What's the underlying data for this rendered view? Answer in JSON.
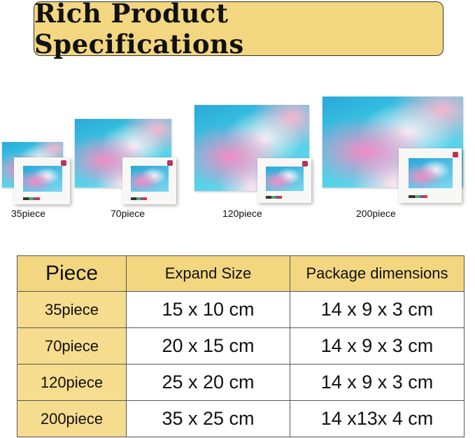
{
  "title": "Rich Product Specifications",
  "colors": {
    "banner": "#f2d680",
    "header_fill": "#f2d680"
  },
  "products": [
    {
      "label": "35piece"
    },
    {
      "label": "70piece"
    },
    {
      "label": "120piece"
    },
    {
      "label": "200piece"
    }
  ],
  "table": {
    "headers": [
      "Piece",
      "Expand Size",
      "Package dimensions"
    ],
    "rows": [
      [
        "35piece",
        "15 x 10 cm",
        "14 x 9 x 3 cm"
      ],
      [
        "70piece",
        "20 x 15 cm",
        "14 x 9 x 3 cm"
      ],
      [
        "120piece",
        "25 x 20 cm",
        "14 x 9 x 3 cm"
      ],
      [
        "200piece",
        "35 x 25 cm",
        "14 x13x 4 cm"
      ]
    ]
  }
}
